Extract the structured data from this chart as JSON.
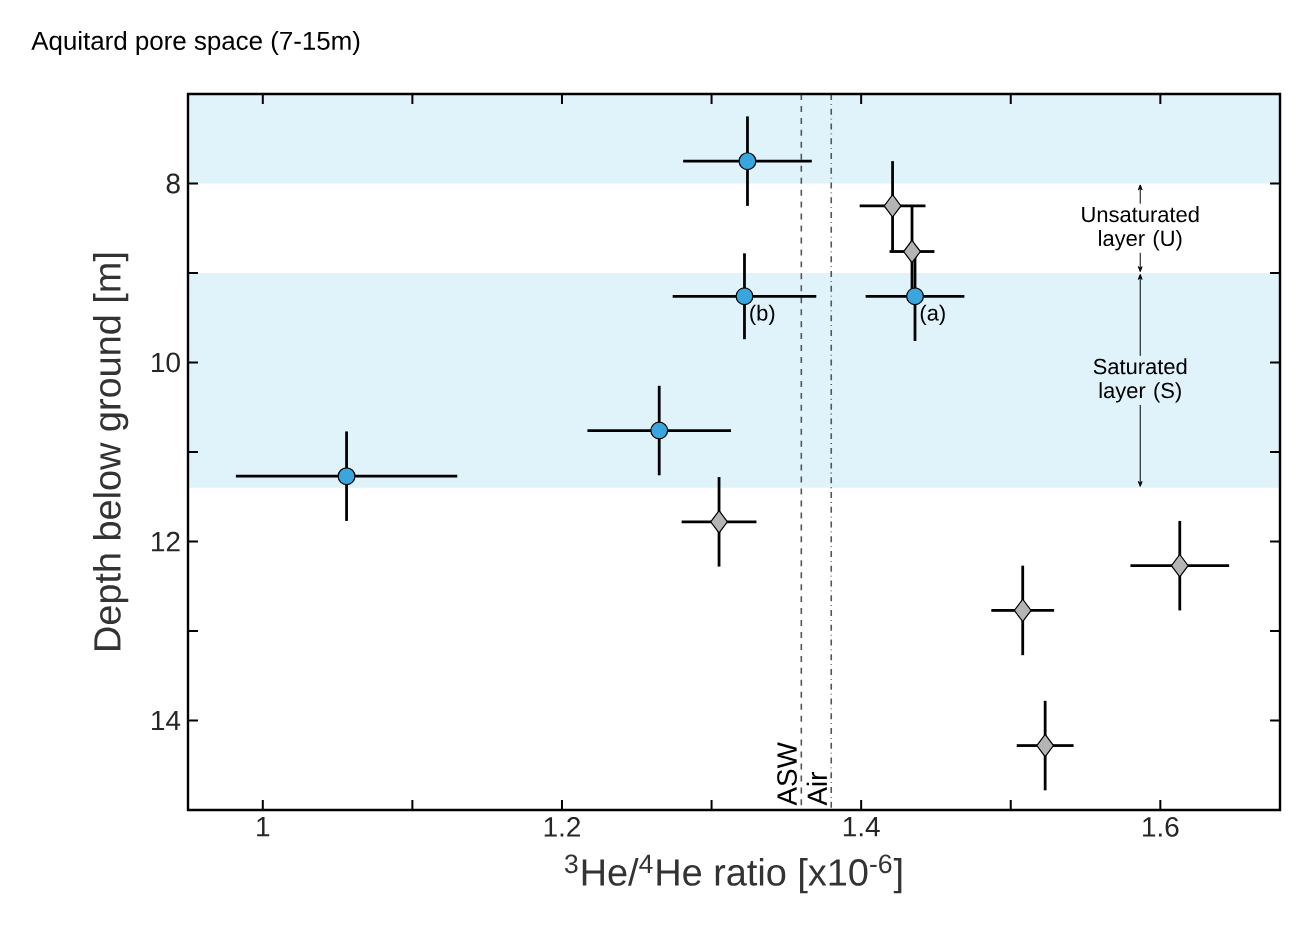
{
  "chart_data": {
    "type": "scatter",
    "title": "Aquitard pore space (7-15m)",
    "xlabel": "$^{3}$He/$^{4}$He ratio [x10$^{-6}$]",
    "ylabel": "Depth below ground [m]",
    "xlim": [
      0.95,
      1.68
    ],
    "ylim": [
      15,
      7
    ],
    "xticks": [
      1,
      {
        "value": 1.1,
        "label": null
      },
      1.2,
      {
        "value": 1.3,
        "label": null
      },
      1.4,
      {
        "value": 1.5,
        "label": null
      },
      1.6
    ],
    "yticks": [
      8,
      {
        "value": 9,
        "label": null
      },
      10,
      {
        "value": 11,
        "label": null
      },
      12,
      {
        "value": 13,
        "label": null
      },
      14
    ],
    "grid": false,
    "series": [
      {
        "color": "#3aa6de",
        "marker": "circle",
        "x": [
          1.324,
          1.322,
          1.436,
          1.265,
          1.056
        ],
        "values": [
          7.75,
          9.26,
          9.26,
          10.76,
          11.27
        ],
        "xerrors": [
          0.043,
          0.048,
          0.033,
          0.048,
          0.074
        ],
        "errors": [
          0.5,
          0.48,
          0.5,
          0.5,
          0.5
        ]
      },
      {
        "color": "#b4b4b4",
        "marker": "diamond",
        "x": [
          1.421,
          1.434,
          1.305,
          1.613,
          1.508,
          1.523
        ],
        "values": [
          8.25,
          8.76,
          11.78,
          12.27,
          12.77,
          14.28
        ],
        "xerrors": [
          0.022,
          0.015,
          0.025,
          0.033,
          0.021,
          0.019
        ],
        "errors": [
          0.5,
          0.5,
          0.5,
          0.5,
          0.5,
          0.5
        ]
      }
    ],
    "ref_lines": [
      {
        "axis": "x",
        "value": 1.36,
        "label": "ASW",
        "color": "#555555",
        "line_style": "dashed"
      },
      {
        "axis": "x",
        "value": 1.38,
        "label": "Air",
        "color": "#555555",
        "line_style": "dashdot"
      }
    ],
    "bands": [
      {
        "axis": "y",
        "from": 7,
        "to": 8,
        "color": "#e0f3fb"
      },
      {
        "axis": "y",
        "from": 9,
        "to": 11.4,
        "color": "#e0f3fb",
        "label": "Saturated layer (S)"
      }
    ],
    "annotations": [
      {
        "text": "(b)",
        "x": 1.322,
        "y": 9.26
      },
      {
        "text": "(a)",
        "x": 1.436,
        "y": 9.26
      },
      "Unsaturated layer (U)"
    ]
  }
}
